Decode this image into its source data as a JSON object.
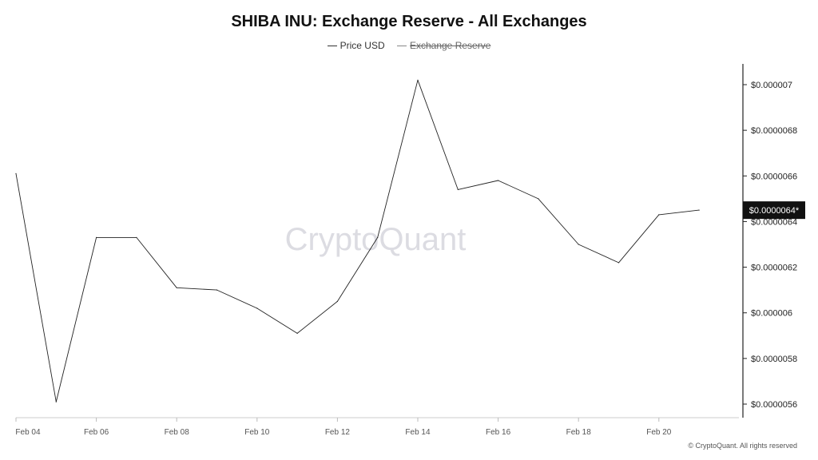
{
  "title": "SHIBA INU: Exchange Reserve - All Exchanges",
  "legend": [
    {
      "label": "Price USD",
      "hidden": false
    },
    {
      "label": "Exchange Reserve",
      "hidden": true
    }
  ],
  "watermark": "CryptoQuant",
  "copyright": "© CryptoQuant. All rights reserved",
  "current_value_label": "$0.0000064*",
  "colors": {
    "line": "#222222",
    "axis": "#222222",
    "watermark": "#dcdce2",
    "badge_bg": "#111111",
    "badge_text": "#ffffff"
  },
  "chart_data": {
    "type": "line",
    "title": "SHIBA INU: Exchange Reserve - All Exchanges",
    "x_tick_labels": [
      "Feb 04",
      "Feb 06",
      "Feb 08",
      "Feb 10",
      "Feb 12",
      "Feb 14",
      "Feb 16",
      "Feb 18",
      "Feb 20"
    ],
    "y_tick_labels": [
      "$0.000007",
      "$0.0000068",
      "$0.0000066",
      "$0.0000064",
      "$0.0000062",
      "$0.000006",
      "$0.0000058",
      "$0.0000056"
    ],
    "y_axis_position": "right",
    "ylim": [
      5.55e-06,
      7.1e-06
    ],
    "series": [
      {
        "name": "Price USD",
        "x": [
          "Feb 04",
          "Feb 05",
          "Feb 06",
          "Feb 07",
          "Feb 08",
          "Feb 09",
          "Feb 10",
          "Feb 11",
          "Feb 12",
          "Feb 13",
          "Feb 14",
          "Feb 15",
          "Feb 16",
          "Feb 17",
          "Feb 18",
          "Feb 19",
          "Feb 20",
          "Feb 21"
        ],
        "values": [
          6.61e-06,
          5.61e-06,
          6.33e-06,
          6.33e-06,
          6.11e-06,
          6.1e-06,
          6.02e-06,
          5.91e-06,
          6.05e-06,
          6.33e-06,
          7.02e-06,
          6.54e-06,
          6.58e-06,
          6.5e-06,
          6.3e-06,
          6.22e-06,
          6.43e-06,
          6.45e-06
        ]
      }
    ]
  }
}
